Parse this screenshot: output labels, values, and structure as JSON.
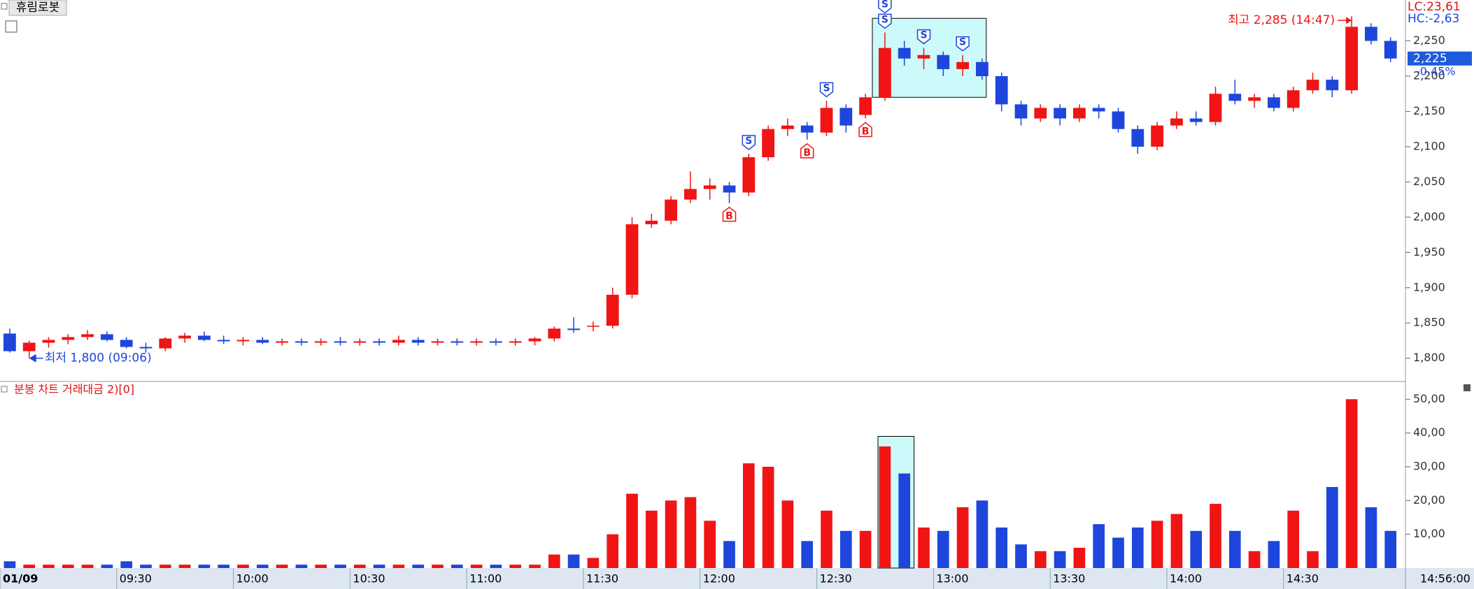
{
  "title": "휴림로봇",
  "chart_data": [
    {
      "type": "candlestick",
      "categories": [
        "01/09",
        null,
        null,
        null,
        null,
        null,
        "09:30",
        null,
        null,
        null,
        null,
        null,
        "10:00",
        null,
        null,
        null,
        null,
        null,
        "10:30",
        null,
        null,
        null,
        null,
        null,
        "11:00",
        null,
        null,
        null,
        null,
        null,
        "11:30",
        null,
        null,
        null,
        null,
        null,
        "12:00",
        null,
        null,
        null,
        null,
        null,
        "12:30",
        null,
        null,
        null,
        null,
        null,
        "13:00",
        null,
        null,
        null,
        null,
        null,
        "13:30",
        null,
        null,
        null,
        null,
        null,
        "14:00",
        null,
        null,
        null,
        null,
        null,
        "14:30",
        null,
        null,
        null,
        null,
        null
      ],
      "open": [
        1835,
        1810,
        1822,
        1826,
        1830,
        1834,
        1826,
        1816,
        1814,
        1828,
        1832,
        1826,
        1824,
        1826,
        1822,
        1824,
        1822,
        1824,
        1822,
        1824,
        1822,
        1826,
        1822,
        1824,
        1822,
        1824,
        1822,
        1824,
        1828,
        1842,
        1846,
        1846,
        1890,
        1990,
        1995,
        2025,
        2040,
        2045,
        2035,
        2085,
        2125,
        2130,
        2120,
        2155,
        2145,
        2170,
        2240,
        2225,
        2230,
        2210,
        2220,
        2200,
        2160,
        2140,
        2155,
        2140,
        2155,
        2150,
        2125,
        2100,
        2130,
        2140,
        2135,
        2175,
        2165,
        2170,
        2155,
        2180,
        2195,
        2180,
        2270,
        2250
      ],
      "high": [
        1842,
        1825,
        1830,
        1834,
        1840,
        1838,
        1830,
        1822,
        1830,
        1836,
        1838,
        1832,
        1830,
        1830,
        1828,
        1828,
        1828,
        1830,
        1828,
        1828,
        1832,
        1830,
        1828,
        1828,
        1828,
        1828,
        1828,
        1830,
        1845,
        1858,
        1852,
        1900,
        2000,
        2005,
        2030,
        2065,
        2055,
        2050,
        2090,
        2130,
        2140,
        2135,
        2165,
        2160,
        2175,
        2262,
        2250,
        2240,
        2235,
        2230,
        2225,
        2205,
        2165,
        2160,
        2160,
        2160,
        2160,
        2155,
        2130,
        2135,
        2150,
        2150,
        2185,
        2195,
        2175,
        2175,
        2185,
        2205,
        2200,
        2285,
        2275,
        2255
      ],
      "low": [
        1808,
        1800,
        1815,
        1820,
        1826,
        1824,
        1814,
        1808,
        1810,
        1822,
        1824,
        1820,
        1818,
        1820,
        1818,
        1818,
        1818,
        1818,
        1818,
        1818,
        1818,
        1818,
        1818,
        1818,
        1818,
        1818,
        1818,
        1818,
        1824,
        1836,
        1838,
        1842,
        1885,
        1985,
        1990,
        2020,
        2025,
        2020,
        2030,
        2080,
        2115,
        2110,
        2115,
        2120,
        2140,
        2165,
        2215,
        2210,
        2200,
        2200,
        2195,
        2150,
        2130,
        2135,
        2130,
        2135,
        2140,
        2120,
        2090,
        2095,
        2125,
        2130,
        2130,
        2160,
        2155,
        2150,
        2150,
        2175,
        2170,
        2175,
        2245,
        2220
      ],
      "close": [
        1810,
        1822,
        1826,
        1830,
        1834,
        1826,
        1816,
        1814,
        1828,
        1832,
        1826,
        1824,
        1826,
        1822,
        1824,
        1822,
        1824,
        1822,
        1824,
        1822,
        1826,
        1822,
        1824,
        1822,
        1824,
        1822,
        1824,
        1828,
        1842,
        1840,
        1846,
        1890,
        1990,
        1995,
        2025,
        2040,
        2045,
        2035,
        2085,
        2125,
        2130,
        2120,
        2155,
        2130,
        2170,
        2240,
        2225,
        2230,
        2210,
        2220,
        2200,
        2160,
        2140,
        2155,
        2140,
        2155,
        2150,
        2125,
        2100,
        2130,
        2140,
        2135,
        2175,
        2165,
        2170,
        2155,
        2180,
        2195,
        2180,
        2270,
        2250,
        2225
      ],
      "up_color": "#f01414",
      "down_color": "#1e46dc",
      "ylim": [
        1768,
        2308
      ],
      "yticks": [
        {
          "value": 1800,
          "label": "1,800"
        },
        {
          "value": 1850,
          "label": "1,850"
        },
        {
          "value": 1900,
          "label": "1,900"
        },
        {
          "value": 1950,
          "label": "1,950"
        },
        {
          "value": 2000,
          "label": "2,000"
        },
        {
          "value": 2050,
          "label": "2,050"
        },
        {
          "value": 2100,
          "label": "2,100"
        },
        {
          "value": 2150,
          "label": "2,150"
        },
        {
          "value": 2200,
          "label": "2,200"
        },
        {
          "value": 2250,
          "label": "2,250"
        }
      ],
      "signals": [
        {
          "index": 37,
          "label": "B"
        },
        {
          "index": 41,
          "label": "B"
        },
        {
          "index": 44,
          "label": "B"
        },
        {
          "index": 38,
          "label": "S"
        },
        {
          "index": 42,
          "label": "S"
        },
        {
          "index": 45,
          "label": "S"
        },
        {
          "index": 45,
          "label": "S"
        },
        {
          "index": 45,
          "label": "S"
        },
        {
          "index": 47,
          "label": "S"
        },
        {
          "index": 49,
          "label": "S"
        }
      ],
      "high_label": "최고 2,285 (14:47)",
      "low_label": "최저 1,800 (09:06)",
      "lc_label": "LC:23,61",
      "hc_label": "HC:-2,63",
      "last_price_label": "2,225",
      "change_label": "-0.45%",
      "x_cursor_label": "14:56:00"
    },
    {
      "type": "bar",
      "title": "분봉 차트 거래대금 2)[0]",
      "values": [
        2,
        1,
        1,
        1,
        1,
        1,
        2,
        1,
        1,
        1,
        1,
        1,
        1,
        1,
        1,
        1,
        1,
        1,
        1,
        1,
        1,
        1,
        1,
        1,
        1,
        1,
        1,
        1,
        4,
        4,
        3,
        10,
        22,
        17,
        20,
        21,
        14,
        8,
        31,
        30,
        20,
        8,
        17,
        11,
        11,
        36,
        28,
        12,
        11,
        18,
        20,
        12,
        7,
        5,
        5,
        6,
        13,
        9,
        12,
        14,
        16,
        11,
        19,
        11,
        5,
        8,
        17,
        5,
        24,
        50,
        18,
        11
      ],
      "ylim": [
        0,
        54
      ],
      "yticks": [
        {
          "value": 10,
          "label": "10,00"
        },
        {
          "value": 20,
          "label": "20,00"
        },
        {
          "value": 30,
          "label": "30,00"
        },
        {
          "value": 40,
          "label": "40,00"
        },
        {
          "value": 50,
          "label": "50,00"
        }
      ]
    }
  ]
}
